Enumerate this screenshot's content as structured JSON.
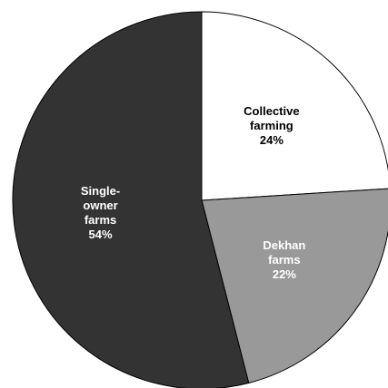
{
  "chart_data": {
    "type": "pie",
    "title": "",
    "start_angle_deg": 0,
    "direction": "clockwise",
    "slices": [
      {
        "label_lines": [
          "Collective",
          "farming",
          "24%"
        ],
        "value": 24,
        "color": "#ffffff",
        "text_color": "#000000"
      },
      {
        "label_lines": [
          "Dekhan",
          "farms",
          "22%"
        ],
        "value": 22,
        "color": "#999999",
        "text_color": "#ffffff"
      },
      {
        "label_lines": [
          "Single-",
          "owner",
          "farms",
          "54%"
        ],
        "value": 54,
        "color": "#333333",
        "text_color": "#ffffff"
      }
    ]
  }
}
